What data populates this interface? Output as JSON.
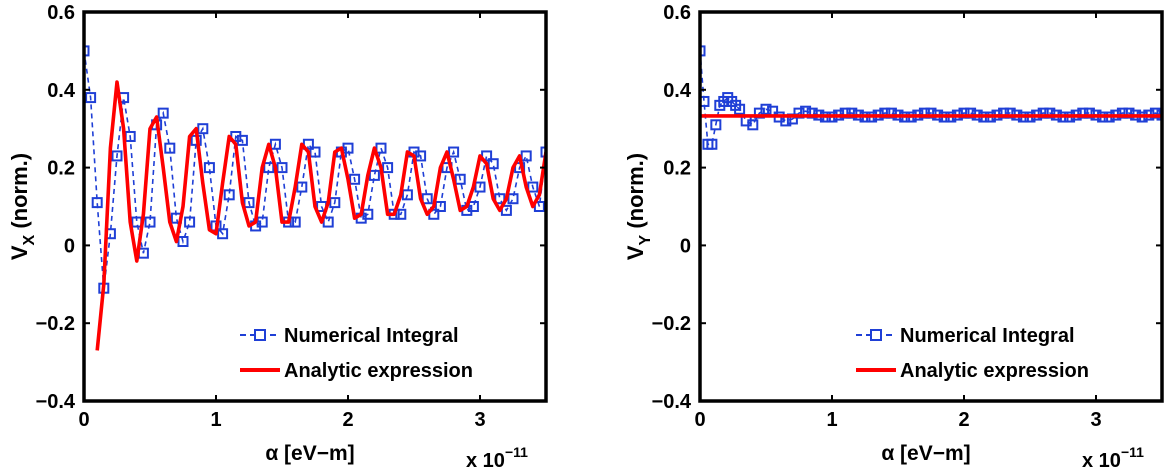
{
  "colors": {
    "numerical": "#1f3fd6",
    "analytic": "#ff0000",
    "axes": "#000000"
  },
  "chart_data": [
    {
      "type": "line",
      "title": "",
      "xlabel": "α [eV−m]",
      "ylabel_main": "V",
      "ylabel_sub": "X",
      "ylabel_suffix": " (norm.)",
      "xlim": [
        0,
        3.5
      ],
      "ylim": [
        -0.4,
        0.6
      ],
      "xticks": [
        0,
        1,
        2,
        3
      ],
      "xtick_labels": [
        "0",
        "1",
        "2",
        "3"
      ],
      "yticks": [
        -0.4,
        -0.2,
        0,
        0.2,
        0.4,
        0.6
      ],
      "ytick_labels": [
        "−0.4",
        "−0.2",
        "0",
        "0.2",
        "0.4",
        "0.6"
      ],
      "x_multiplier": {
        "base": "x 10",
        "exponent": "−11"
      },
      "grid": false,
      "legend_position": "bottom-right",
      "series": [
        {
          "name": "Numerical Integral",
          "style": "dashed-square-markers",
          "x": [
            0.0,
            0.05,
            0.1,
            0.15,
            0.2,
            0.25,
            0.3,
            0.35,
            0.4,
            0.45,
            0.5,
            0.55,
            0.6,
            0.65,
            0.7,
            0.75,
            0.8,
            0.85,
            0.9,
            0.95,
            1.0,
            1.05,
            1.1,
            1.15,
            1.2,
            1.25,
            1.3,
            1.35,
            1.4,
            1.45,
            1.5,
            1.55,
            1.6,
            1.65,
            1.7,
            1.75,
            1.8,
            1.85,
            1.9,
            1.95,
            2.0,
            2.05,
            2.1,
            2.15,
            2.2,
            2.25,
            2.3,
            2.35,
            2.4,
            2.45,
            2.5,
            2.55,
            2.6,
            2.65,
            2.7,
            2.75,
            2.8,
            2.85,
            2.9,
            2.95,
            3.0,
            3.05,
            3.1,
            3.15,
            3.2,
            3.25,
            3.3,
            3.35,
            3.4,
            3.45,
            3.5
          ],
          "y": [
            0.5,
            0.38,
            0.11,
            -0.11,
            0.03,
            0.23,
            0.38,
            0.28,
            0.06,
            -0.02,
            0.06,
            0.31,
            0.34,
            0.25,
            0.07,
            0.01,
            0.06,
            0.27,
            0.3,
            0.2,
            0.05,
            0.03,
            0.13,
            0.28,
            0.27,
            0.11,
            0.05,
            0.06,
            0.2,
            0.26,
            0.2,
            0.06,
            0.06,
            0.15,
            0.26,
            0.24,
            0.1,
            0.06,
            0.11,
            0.24,
            0.25,
            0.17,
            0.07,
            0.08,
            0.18,
            0.25,
            0.2,
            0.08,
            0.08,
            0.13,
            0.24,
            0.23,
            0.12,
            0.08,
            0.1,
            0.2,
            0.24,
            0.17,
            0.09,
            0.1,
            0.15,
            0.23,
            0.21,
            0.12,
            0.09,
            0.12,
            0.2,
            0.23,
            0.15,
            0.1,
            0.24
          ]
        },
        {
          "name": "Analytic expression",
          "style": "solid",
          "x": [
            0.1,
            0.15,
            0.2,
            0.25,
            0.3,
            0.35,
            0.4,
            0.45,
            0.5,
            0.55,
            0.6,
            0.65,
            0.7,
            0.75,
            0.8,
            0.85,
            0.9,
            0.95,
            1.0,
            1.05,
            1.1,
            1.15,
            1.2,
            1.25,
            1.3,
            1.35,
            1.4,
            1.45,
            1.5,
            1.55,
            1.6,
            1.65,
            1.7,
            1.75,
            1.8,
            1.85,
            1.9,
            1.95,
            2.0,
            2.05,
            2.1,
            2.15,
            2.2,
            2.25,
            2.3,
            2.35,
            2.4,
            2.45,
            2.5,
            2.55,
            2.6,
            2.65,
            2.7,
            2.75,
            2.8,
            2.85,
            2.9,
            2.95,
            3.0,
            3.05,
            3.1,
            3.15,
            3.2,
            3.25,
            3.3,
            3.35,
            3.4,
            3.45,
            3.5
          ],
          "y": [
            -0.27,
            -0.1,
            0.25,
            0.42,
            0.3,
            0.06,
            -0.04,
            0.08,
            0.3,
            0.33,
            0.2,
            0.06,
            0.01,
            0.1,
            0.28,
            0.3,
            0.16,
            0.04,
            0.03,
            0.16,
            0.28,
            0.26,
            0.11,
            0.05,
            0.06,
            0.2,
            0.26,
            0.2,
            0.06,
            0.06,
            0.15,
            0.26,
            0.24,
            0.1,
            0.06,
            0.11,
            0.24,
            0.25,
            0.17,
            0.07,
            0.08,
            0.18,
            0.25,
            0.2,
            0.08,
            0.08,
            0.13,
            0.24,
            0.23,
            0.12,
            0.08,
            0.1,
            0.2,
            0.24,
            0.17,
            0.09,
            0.1,
            0.15,
            0.23,
            0.21,
            0.12,
            0.09,
            0.12,
            0.2,
            0.23,
            0.15,
            0.1,
            0.13,
            0.24
          ]
        }
      ]
    },
    {
      "type": "line",
      "title": "",
      "xlabel": "α [eV−m]",
      "ylabel_main": "V",
      "ylabel_sub": "Y",
      "ylabel_suffix": " (norm.)",
      "xlim": [
        0,
        3.5
      ],
      "ylim": [
        -0.4,
        0.6
      ],
      "xticks": [
        0,
        1,
        2,
        3
      ],
      "xtick_labels": [
        "0",
        "1",
        "2",
        "3"
      ],
      "yticks": [
        -0.4,
        -0.2,
        0,
        0.2,
        0.4,
        0.6
      ],
      "ytick_labels": [
        "−0.4",
        "−0.2",
        "0",
        "0.2",
        "0.4",
        "0.6"
      ],
      "x_multiplier": {
        "base": "x 10",
        "exponent": "−11"
      },
      "grid": false,
      "legend_position": "bottom-right",
      "series": [
        {
          "name": "Numerical Integral",
          "style": "dashed-square-markers",
          "x": [
            0.0,
            0.03,
            0.06,
            0.09,
            0.12,
            0.15,
            0.18,
            0.21,
            0.24,
            0.27,
            0.3,
            0.35,
            0.4,
            0.45,
            0.5,
            0.55,
            0.6,
            0.65,
            0.7,
            0.75,
            0.8,
            0.85,
            0.9,
            0.95,
            1.0,
            1.05,
            1.1,
            1.15,
            1.2,
            1.25,
            1.3,
            1.35,
            1.4,
            1.45,
            1.5,
            1.55,
            1.6,
            1.65,
            1.7,
            1.75,
            1.8,
            1.85,
            1.9,
            1.95,
            2.0,
            2.05,
            2.1,
            2.15,
            2.2,
            2.25,
            2.3,
            2.35,
            2.4,
            2.45,
            2.5,
            2.55,
            2.6,
            2.65,
            2.7,
            2.75,
            2.8,
            2.85,
            2.9,
            2.95,
            3.0,
            3.05,
            3.1,
            3.15,
            3.2,
            3.25,
            3.3,
            3.35,
            3.4,
            3.45,
            3.5
          ],
          "y": [
            0.5,
            0.37,
            0.26,
            0.26,
            0.31,
            0.36,
            0.37,
            0.38,
            0.37,
            0.36,
            0.35,
            0.32,
            0.31,
            0.34,
            0.35,
            0.345,
            0.33,
            0.32,
            0.325,
            0.34,
            0.345,
            0.34,
            0.335,
            0.33,
            0.33,
            0.335,
            0.34,
            0.34,
            0.335,
            0.33,
            0.33,
            0.335,
            0.34,
            0.34,
            0.335,
            0.33,
            0.33,
            0.335,
            0.34,
            0.34,
            0.335,
            0.33,
            0.33,
            0.335,
            0.34,
            0.34,
            0.335,
            0.33,
            0.33,
            0.335,
            0.34,
            0.34,
            0.335,
            0.33,
            0.33,
            0.335,
            0.34,
            0.34,
            0.335,
            0.33,
            0.33,
            0.335,
            0.34,
            0.34,
            0.335,
            0.33,
            0.33,
            0.335,
            0.34,
            0.34,
            0.335,
            0.33,
            0.335,
            0.34,
            0.335
          ]
        },
        {
          "name": "Analytic expression",
          "style": "solid",
          "x": [
            0.0,
            3.5
          ],
          "y": [
            0.333,
            0.333
          ]
        }
      ]
    }
  ]
}
